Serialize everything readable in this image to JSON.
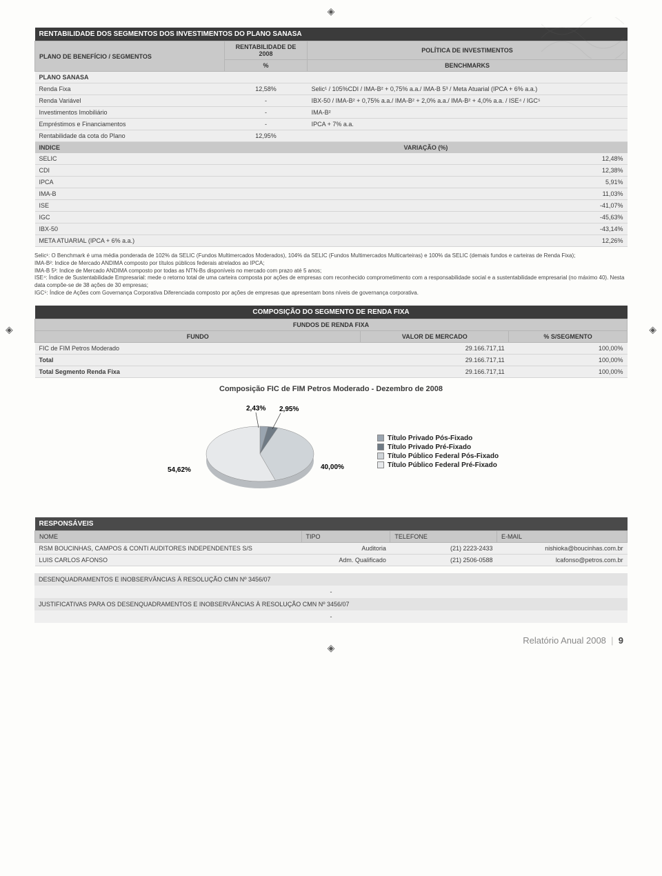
{
  "page": {
    "footer_left": "Relatório Anual 2008",
    "footer_page": "9"
  },
  "colors": {
    "dark_header_bg": "#3b3b3b",
    "mid_header_bg": "#c9c9c9",
    "cell_bg": "#eeeeee",
    "body_bg": "#fdfdfb"
  },
  "table1": {
    "title": "RENTABILIDADE DOS SEGMENTOS DOS INVESTIMENTOS DO PLANO SANASA",
    "sub_left": "PLANO DE BENEFÍCIO / SEGMENTOS",
    "sub_mid_top": "RENTABILIDADE DE 2008",
    "sub_mid_bot": "%",
    "sub_right_top": "POLÍTICA DE INVESTIMENTOS",
    "sub_right_bot": "BENCHMARKS",
    "group_label": "PLANO SANASA",
    "rows": [
      {
        "name": "Renda Fixa",
        "pct": "12,58%",
        "bench": "Selic¹ / 105%CDI / IMA-B² + 0,75% a.a./ IMA-B 5³ / Meta Atuarial (IPCA + 6% a.a.)"
      },
      {
        "name": "Renda Variável",
        "pct": "-",
        "bench": "IBX-50 / IMA-B² + 0,75% a.a./ IMA-B² + 2,0% a.a./ IMA-B² + 4,0% a.a. / ISE⁴ / IGC⁵"
      },
      {
        "name": "Investimentos Imobiliário",
        "pct": "-",
        "bench": "IMA-B²"
      },
      {
        "name": "Empréstimos e Financiamentos",
        "pct": "-",
        "bench": "IPCA + 7% a.a."
      },
      {
        "name": "Rentabilidade da cota do Plano",
        "pct": "12,95%",
        "bench": ""
      }
    ],
    "indice_hdr_left": "INDICE",
    "indice_hdr_right": "VARIAÇÃO (%)",
    "indice_rows": [
      {
        "name": "SELIC",
        "val": "12,48%"
      },
      {
        "name": "CDI",
        "val": "12,38%"
      },
      {
        "name": "IPCA",
        "val": "5,91%"
      },
      {
        "name": "IMA-B",
        "val": "11,03%"
      },
      {
        "name": "ISE",
        "val": "-41,07%"
      },
      {
        "name": "IGC",
        "val": "-45,63%"
      },
      {
        "name": "IBX-50",
        "val": "-43,14%"
      },
      {
        "name": "META ATUARIAL (IPCA + 6% a.a.)",
        "val": "12,26%"
      }
    ]
  },
  "footnotes": "Selic¹: O Benchmark é uma média ponderada de 102% da SELIC (Fundos Multimercados Moderados), 104% da SELIC (Fundos Multimercados Multicarteiras) e 100% da SELIC (demais fundos e carteiras de Renda Fixa);\nIMA-B²: Indice de Mercado ANDIMA composto por títulos públicos federais atrelados ao IPCA;\nIMA-B 5³: Indice de Mercado ANDIMA composto por todas as NTN-Bs disponíveis no mercado com prazo até 5 anos;\nISE⁴: Índice de Sustentabilidade Empresarial: mede o retorno total de uma carteira composta por ações de empresas com reconhecido comprometimento com a responsabilidade social e a sustentabilidade empresarial (no máximo 40). Nesta data compõe-se de 38 ações de 30 empresas;\nIGC⁵: Índice de Ações com Governança Corporativa Diferenciada composto por ações de empresas que apresentam bons níveis de governança corporativa.",
  "table2": {
    "title": "COMPOSIÇÃO DO SEGMENTO DE RENDA FIXA",
    "subtitle": "FUNDOS DE RENDA FIXA",
    "col1": "FUNDO",
    "col2": "VALOR DE MERCADO",
    "col3": "% S/SEGMENTO",
    "rows": [
      {
        "a": "FIC de FIM Petros Moderado",
        "b": "29.166.717,11",
        "c": "100,00%"
      },
      {
        "a": "Total",
        "b": "29.166.717,11",
        "c": "100,00%"
      },
      {
        "a": "Total Segmento Renda Fixa",
        "b": "29.166.717,11",
        "c": "100,00%"
      }
    ]
  },
  "chart": {
    "title": "Composição FIC de FIM Petros Moderado - Dezembro de 2008",
    "type": "pie",
    "slices": [
      {
        "label": "Título Privado Pós-Fixado",
        "pct": 2.43,
        "color": "#9aa5b0"
      },
      {
        "label": "Título Privado Pré-Fixado",
        "pct": 2.95,
        "color": "#6f7a84"
      },
      {
        "label": "Título Público Federal Pós-Fixado",
        "pct": 40.0,
        "color": "#cfd4d8"
      },
      {
        "label": "Título Público Federal Pré-Fixado",
        "pct": 54.62,
        "color": "#e7e9eb"
      }
    ],
    "label_positions": {
      "l1": "2,43%",
      "l2": "2,95%",
      "l3": "40,00%",
      "l4": "54,62%"
    },
    "title_fontsize": 11,
    "label_fontsize": 10
  },
  "responsaveis": {
    "title": "RESPONSÁVEIS",
    "cols": [
      "NOME",
      "TIPO",
      "TELEFONE",
      "E-MAIL"
    ],
    "rows": [
      {
        "a": "RSM BOUCINHAS, CAMPOS & CONTI AUDITORES INDEPENDENTES S/S",
        "b": "Auditoria",
        "c": "(21) 2223-2433",
        "d": "nishioka@boucinhas.com.br"
      },
      {
        "a": "LUIS CARLOS AFONSO",
        "b": "Adm. Qualificado",
        "c": "(21) 2506-0588",
        "d": "lcafonso@petros.com.br"
      }
    ]
  },
  "bottom_bars": {
    "bar1": "DESENQUADRAMENTOS E INOBSERVÂNCIAS À RESOLUÇÃO CMN Nº 3456/07",
    "bar2": "JUSTIFICATIVAS PARA OS DESENQUADRAMENTOS E INOBSERVÂNCIAS À RESOLUÇÃO CMN Nº 3456/07",
    "dash": "-"
  }
}
